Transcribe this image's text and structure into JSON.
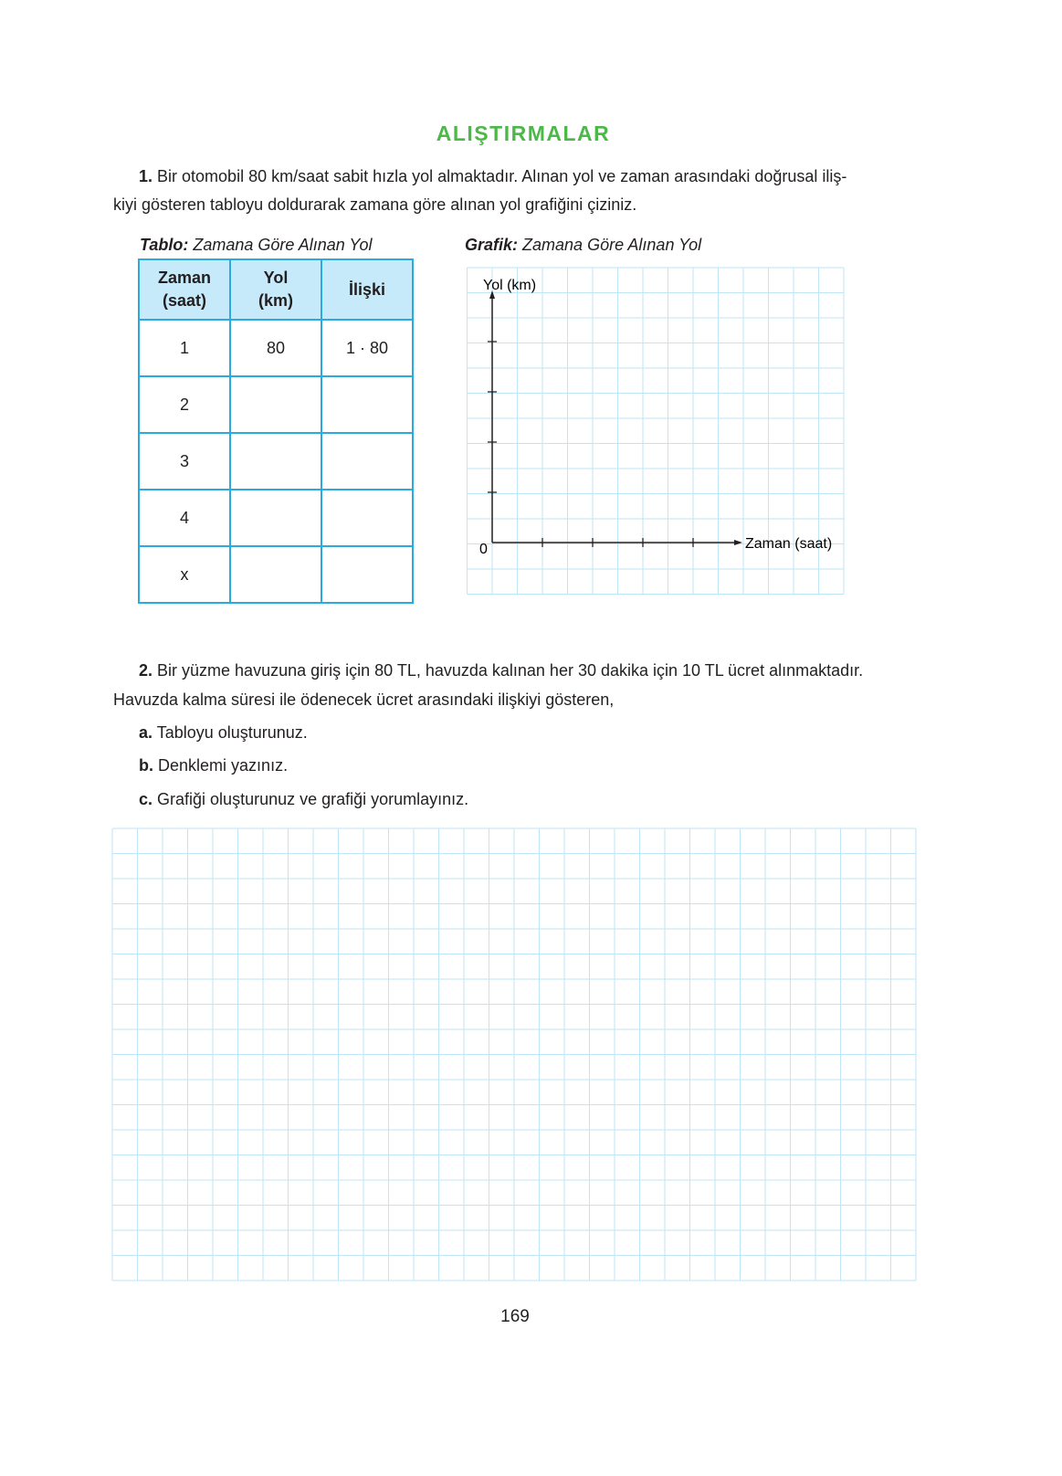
{
  "title": "ALIŞTIRMALAR",
  "q1": {
    "num": "1.",
    "text_line1": "Bir otomobil 80 km/saat sabit hızla yol almaktadır. Alınan yol ve zaman arasındaki doğrusal iliş-",
    "text_line2": "kiyi gösteren tabloyu doldurarak zamana göre alınan yol grafiğini çiziniz.",
    "table_caption_bold": "Tablo:",
    "table_caption": " Zamana Göre Alınan Yol",
    "graph_caption_bold": "Grafik:",
    "graph_caption": " Zamana Göre Alınan Yol",
    "table": {
      "headers": [
        [
          "Zaman",
          "(saat)"
        ],
        [
          "Yol",
          "(km)"
        ],
        [
          "İlişki"
        ]
      ],
      "rows": [
        [
          "1",
          "80",
          "1 · 80"
        ],
        [
          "2",
          "",
          ""
        ],
        [
          "3",
          "",
          ""
        ],
        [
          "4",
          "",
          ""
        ],
        [
          "x",
          "",
          ""
        ]
      ]
    },
    "graph": {
      "y_label": "Yol (km)",
      "x_label": "Zaman (saat)",
      "origin": "0",
      "grid_color": "#bfe6f6"
    }
  },
  "q2": {
    "num": "2.",
    "text_line1": "Bir yüzme havuzuna giriş için 80 TL, havuzda kalınan her 30 dakika için 10 TL ücret alınmaktadır.",
    "text_line2": "Havuzda kalma süresi ile ödenecek ücret arasındaki ilişkiyi gösteren,",
    "items": [
      {
        "label": "a.",
        "text": "Tabloyu oluşturunuz."
      },
      {
        "label": "b.",
        "text": "Denklemi yazınız."
      },
      {
        "label": "c.",
        "text": "Grafiği oluşturunuz ve grafiği yorumlayınız."
      }
    ]
  },
  "page_number": "169",
  "accent": "#4cb848",
  "table_border": "#29abe2"
}
